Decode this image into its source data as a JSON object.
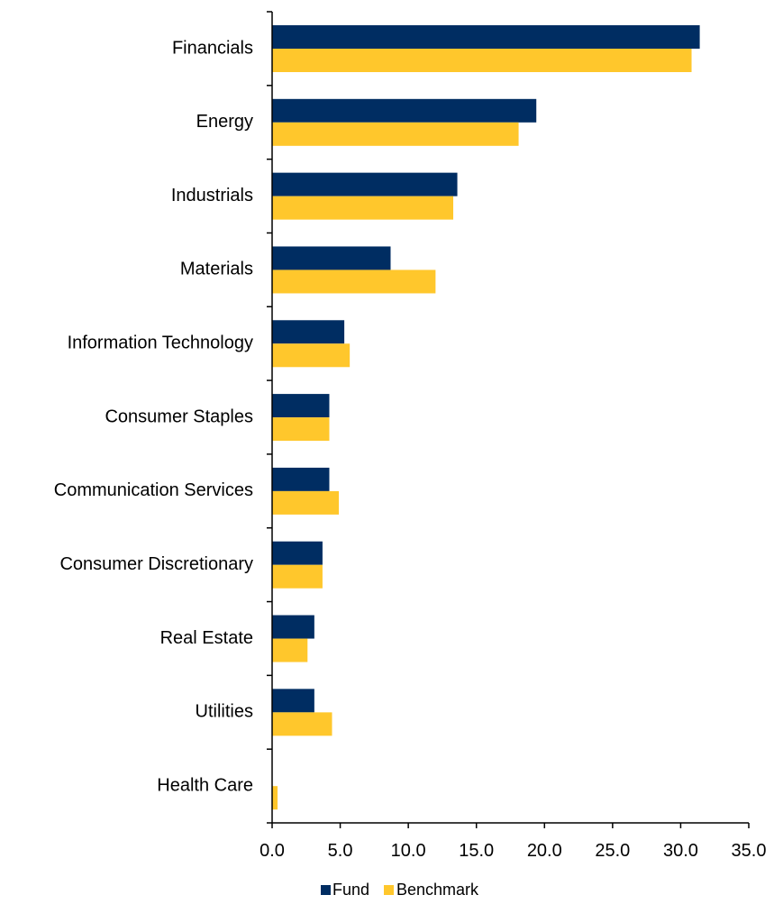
{
  "chart_data": {
    "type": "bar",
    "orientation": "horizontal",
    "categories": [
      "Financials",
      "Energy",
      "Industrials",
      "Materials",
      "Information Technology",
      "Consumer Staples",
      "Communication Services",
      "Consumer Discretionary",
      "Real Estate",
      "Utilities",
      "Health Care"
    ],
    "series": [
      {
        "name": "Fund",
        "color": "#002d62",
        "values": [
          31.4,
          19.4,
          13.6,
          8.7,
          5.3,
          4.2,
          4.2,
          3.7,
          3.1,
          3.1,
          0.0
        ]
      },
      {
        "name": "Benchmark",
        "color": "#ffc72c",
        "values": [
          30.8,
          18.1,
          13.3,
          12.0,
          5.7,
          4.2,
          4.9,
          3.7,
          2.6,
          4.4,
          0.4
        ]
      }
    ],
    "xlim": [
      0,
      35
    ],
    "xticks": [
      "0.0",
      "5.0",
      "10.0",
      "15.0",
      "20.0",
      "25.0",
      "30.0",
      "35.0"
    ],
    "title": "",
    "xlabel": "",
    "ylabel": "",
    "grid": false,
    "legend_position": "bottom"
  }
}
